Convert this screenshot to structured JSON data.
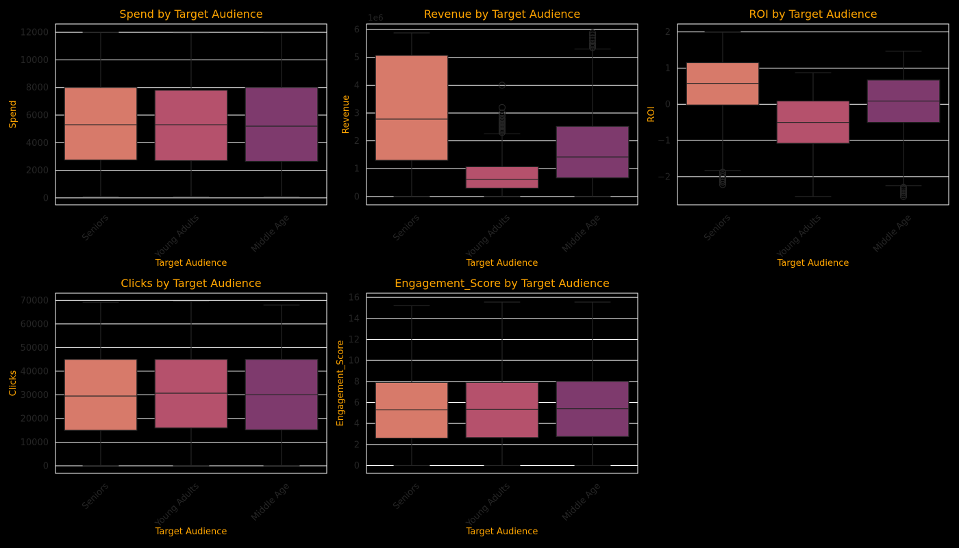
{
  "colors": {
    "background": "#000000",
    "title": "#FFA500",
    "grid": "#ffffff",
    "boxes": [
      "#d77a6a",
      "#b5516c",
      "#7e3a6d"
    ]
  },
  "chart_data": [
    {
      "type": "box",
      "title": "Spend by Target Audience",
      "xlabel": "Target Audience",
      "ylabel": "Spend",
      "offset": "",
      "categories": [
        "Seniors",
        "Young Adults",
        "Middle Age"
      ],
      "ylim": [
        -500,
        12600
      ],
      "yticks": [
        0,
        2000,
        4000,
        6000,
        8000,
        10000,
        12000
      ],
      "ytick_labels": [
        "0",
        "2000",
        "4000",
        "6000",
        "8000",
        "10000",
        "12000"
      ],
      "boxes": [
        {
          "whislo": 100,
          "q1": 2750,
          "med": 5300,
          "q3": 8000,
          "whishi": 12000,
          "fliers": []
        },
        {
          "whislo": 100,
          "q1": 2700,
          "med": 5300,
          "q3": 7800,
          "whishi": 11950,
          "fliers": []
        },
        {
          "whislo": 100,
          "q1": 2650,
          "med": 5200,
          "q3": 8000,
          "whishi": 11950,
          "fliers": []
        }
      ]
    },
    {
      "type": "box",
      "title": "Revenue by Target Audience",
      "xlabel": "Target Audience",
      "ylabel": "Revenue",
      "offset": "1e6",
      "categories": [
        "Seniors",
        "Young Adults",
        "Middle Age"
      ],
      "ylim": [
        -0.3,
        6.2
      ],
      "yticks": [
        0,
        1,
        2,
        3,
        4,
        5,
        6
      ],
      "ytick_labels": [
        "0",
        "1",
        "2",
        "3",
        "4",
        "5",
        "6"
      ],
      "boxes": [
        {
          "whislo": 0,
          "q1": 1.3,
          "med": 2.78,
          "q3": 5.07,
          "whishi": 5.88,
          "fliers": []
        },
        {
          "whislo": 0,
          "q1": 0.3,
          "med": 0.62,
          "q3": 1.07,
          "whishi": 2.25,
          "fliers": [
            2.3,
            2.35,
            2.4,
            2.45,
            2.5,
            2.55,
            2.6,
            2.65,
            2.7,
            2.75,
            2.8,
            2.9,
            3.0,
            3.2,
            4.0
          ]
        },
        {
          "whislo": 0,
          "q1": 0.67,
          "med": 1.42,
          "q3": 2.52,
          "whishi": 5.3,
          "fliers": [
            5.35,
            5.4,
            5.45,
            5.5,
            5.6,
            5.7,
            5.8,
            5.88
          ]
        }
      ]
    },
    {
      "type": "box",
      "title": "ROI by Target Audience",
      "xlabel": "Target Audience",
      "ylabel": "ROI",
      "offset": "",
      "categories": [
        "Seniors",
        "Young Adults",
        "Middle Age"
      ],
      "ylim": [
        -2.78,
        2.22
      ],
      "yticks": [
        -2,
        -1,
        0,
        1,
        2
      ],
      "ytick_labels": [
        "−2",
        "−1",
        "0",
        "1",
        "2"
      ],
      "boxes": [
        {
          "whislo": -1.83,
          "q1": -0.02,
          "med": 0.58,
          "q3": 1.15,
          "whishi": 2.0,
          "fliers": [
            -1.88,
            -1.95,
            -2.0,
            -2.05,
            -2.1,
            -2.15,
            -2.22
          ]
        },
        {
          "whislo": -2.55,
          "q1": -1.08,
          "med": -0.5,
          "q3": 0.09,
          "whishi": 0.87,
          "fliers": []
        },
        {
          "whislo": -2.25,
          "q1": -0.5,
          "med": 0.09,
          "q3": 0.67,
          "whishi": 1.47,
          "fliers": [
            -2.3,
            -2.35,
            -2.4,
            -2.45,
            -2.5,
            -2.55
          ]
        }
      ]
    },
    {
      "type": "box",
      "title": "Clicks by Target Audience",
      "xlabel": "Target Audience",
      "ylabel": "Clicks",
      "offset": "",
      "categories": [
        "Seniors",
        "Young Adults",
        "Middle Age"
      ],
      "ylim": [
        -3200,
        73000
      ],
      "yticks": [
        0,
        10000,
        20000,
        30000,
        40000,
        50000,
        60000,
        70000
      ],
      "ytick_labels": [
        "0",
        "10000",
        "20000",
        "30000",
        "40000",
        "50000",
        "60000",
        "70000"
      ],
      "boxes": [
        {
          "whislo": 100,
          "q1": 15000,
          "med": 29500,
          "q3": 45000,
          "whishi": 69200,
          "fliers": []
        },
        {
          "whislo": 100,
          "q1": 16000,
          "med": 30700,
          "q3": 45000,
          "whishi": 69500,
          "fliers": []
        },
        {
          "whislo": 100,
          "q1": 15200,
          "med": 30000,
          "q3": 45000,
          "whishi": 68000,
          "fliers": []
        }
      ]
    },
    {
      "type": "box",
      "title": "Engagement_Score by Target Audience",
      "xlabel": "Target Audience",
      "ylabel": "Engagement_Score",
      "offset": "",
      "categories": [
        "Seniors",
        "Young Adults",
        "Middle Age"
      ],
      "ylim": [
        -0.75,
        16.4
      ],
      "yticks": [
        0,
        2,
        4,
        6,
        8,
        10,
        12,
        14,
        16
      ],
      "ytick_labels": [
        "0",
        "2",
        "4",
        "6",
        "8",
        "10",
        "12",
        "14",
        "16"
      ],
      "boxes": [
        {
          "whislo": 0,
          "q1": 2.6,
          "med": 5.3,
          "q3": 7.9,
          "whishi": 15.2,
          "fliers": []
        },
        {
          "whislo": 0,
          "q1": 2.65,
          "med": 5.35,
          "q3": 7.9,
          "whishi": 15.55,
          "fliers": []
        },
        {
          "whislo": 0,
          "q1": 2.75,
          "med": 5.4,
          "q3": 8.0,
          "whishi": 15.55,
          "fliers": []
        }
      ]
    }
  ]
}
